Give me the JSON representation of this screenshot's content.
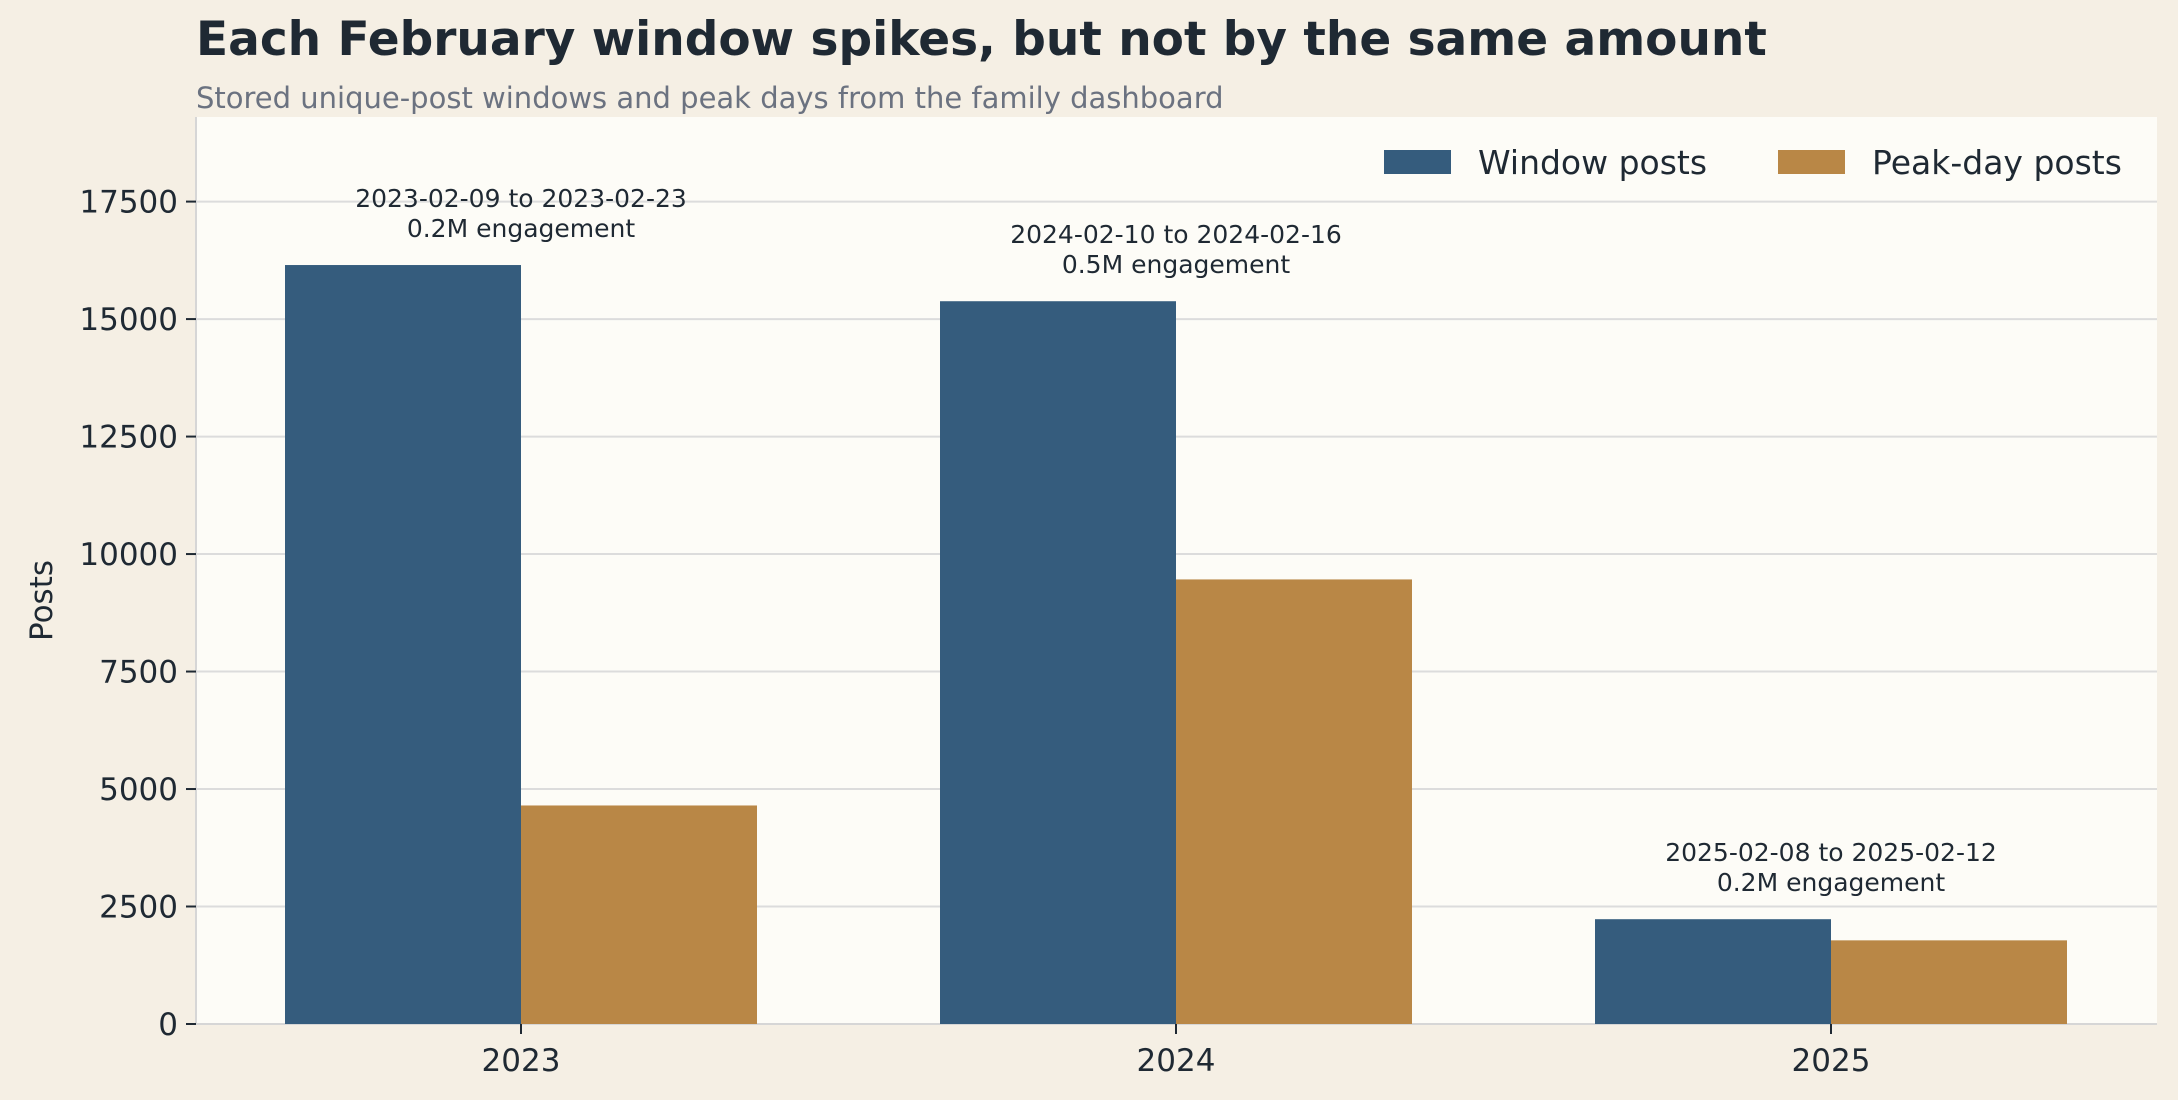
{
  "colors": {
    "page_background": "#f5efe4",
    "plot_background": "#fdfcf7",
    "window_posts": "#355c7d",
    "peak_day_posts": "#b98746",
    "grid": "#dcdcdc",
    "text": "#1f2933",
    "subtitle": "#6b7280"
  },
  "chart_data": {
    "type": "bar",
    "title": "Each February window spikes, but not by the same amount",
    "subtitle": "Stored unique-post windows and peak days from the family dashboard",
    "xlabel": "",
    "ylabel": "Posts",
    "categories": [
      "2023",
      "2024",
      "2025"
    ],
    "series": [
      {
        "name": "Window posts",
        "color": "#355c7d",
        "values": [
          16150,
          15380,
          2230
        ]
      },
      {
        "name": "Peak-day posts",
        "color": "#b98746",
        "values": [
          4650,
          9460,
          1780
        ]
      }
    ],
    "ylim": [
      0,
      19300
    ],
    "yticks": [
      0,
      2500,
      5000,
      7500,
      10000,
      12500,
      15000,
      17500
    ],
    "ytick_labels": [
      "0",
      "2500",
      "5000",
      "7500",
      "10000",
      "12500",
      "15000",
      "17500"
    ],
    "grid": true,
    "legend_position": "top-right",
    "annotations": [
      {
        "category": "2023",
        "line1": "2023-02-09 to 2023-02-23",
        "line2": "0.2M engagement"
      },
      {
        "category": "2024",
        "line1": "2024-02-10 to 2024-02-16",
        "line2": "0.5M engagement"
      },
      {
        "category": "2025",
        "line1": "2025-02-08 to 2025-02-12",
        "line2": "0.2M engagement"
      }
    ]
  }
}
